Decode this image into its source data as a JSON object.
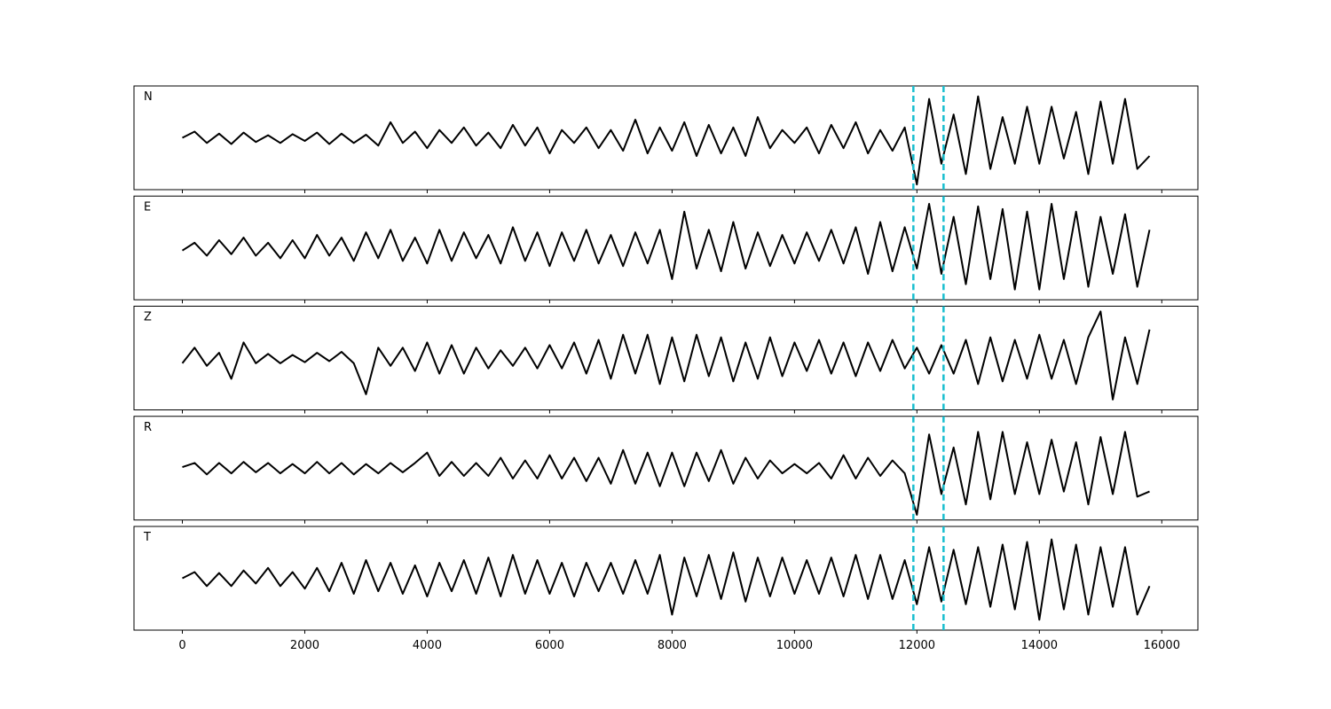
{
  "chart_data": {
    "type": "line",
    "x": [
      0,
      200,
      400,
      600,
      800,
      1000,
      1200,
      1400,
      1600,
      1800,
      2000,
      2200,
      2400,
      2600,
      2800,
      3000,
      3200,
      3400,
      3600,
      3800,
      4000,
      4200,
      4400,
      4600,
      4800,
      5000,
      5200,
      5400,
      5600,
      5800,
      6000,
      6200,
      6400,
      6600,
      6800,
      7000,
      7200,
      7400,
      7600,
      7800,
      8000,
      8200,
      8400,
      8600,
      8800,
      9000,
      9200,
      9400,
      9600,
      9800,
      10000,
      10200,
      10400,
      10600,
      10800,
      11000,
      11200,
      11400,
      11600,
      11800,
      12000,
      12200,
      12400,
      12600,
      12800,
      13000,
      13200,
      13400,
      13600,
      13800,
      14000,
      14200,
      14400,
      14600,
      14800,
      15000,
      15200,
      15400,
      15600,
      15800
    ],
    "xlim": [
      -790,
      16590
    ],
    "xticks": [
      0,
      2000,
      4000,
      6000,
      8000,
      10000,
      12000,
      14000,
      16000
    ],
    "ylim": [
      -1,
      1
    ],
    "vlines": [
      11942,
      12435
    ],
    "vline_color": "#17becf",
    "line_color": "#000000",
    "series": [
      {
        "name": "N",
        "values": [
          0.0,
          0.12,
          -0.1,
          0.08,
          -0.12,
          0.1,
          -0.08,
          0.05,
          -0.1,
          0.07,
          -0.06,
          0.1,
          -0.12,
          0.08,
          -0.1,
          0.06,
          -0.15,
          0.3,
          -0.1,
          0.12,
          -0.2,
          0.15,
          -0.1,
          0.2,
          -0.15,
          0.1,
          -0.2,
          0.25,
          -0.15,
          0.2,
          -0.3,
          0.15,
          -0.1,
          0.2,
          -0.2,
          0.15,
          -0.25,
          0.35,
          -0.3,
          0.2,
          -0.25,
          0.3,
          -0.35,
          0.25,
          -0.3,
          0.2,
          -0.35,
          0.4,
          -0.2,
          0.15,
          -0.1,
          0.2,
          -0.3,
          0.25,
          -0.2,
          0.3,
          -0.3,
          0.15,
          -0.25,
          0.2,
          -0.9,
          0.75,
          -0.5,
          0.45,
          -0.7,
          0.8,
          -0.6,
          0.4,
          -0.5,
          0.6,
          -0.5,
          0.6,
          -0.4,
          0.5,
          -0.7,
          0.7,
          -0.5,
          0.75,
          -0.6,
          -0.35
        ]
      },
      {
        "name": "E",
        "values": [
          -0.05,
          0.1,
          -0.15,
          0.15,
          -0.12,
          0.2,
          -0.15,
          0.1,
          -0.2,
          0.15,
          -0.2,
          0.25,
          -0.15,
          0.2,
          -0.25,
          0.3,
          -0.2,
          0.35,
          -0.25,
          0.2,
          -0.3,
          0.35,
          -0.25,
          0.3,
          -0.2,
          0.25,
          -0.3,
          0.4,
          -0.25,
          0.3,
          -0.35,
          0.3,
          -0.25,
          0.35,
          -0.3,
          0.25,
          -0.35,
          0.3,
          -0.3,
          0.35,
          -0.6,
          0.7,
          -0.4,
          0.35,
          -0.45,
          0.5,
          -0.4,
          0.3,
          -0.35,
          0.25,
          -0.3,
          0.3,
          -0.25,
          0.35,
          -0.3,
          0.4,
          -0.5,
          0.5,
          -0.45,
          0.4,
          -0.4,
          0.85,
          -0.5,
          0.6,
          -0.7,
          0.8,
          -0.6,
          0.75,
          -0.8,
          0.7,
          -0.8,
          0.85,
          -0.6,
          0.7,
          -0.75,
          0.6,
          -0.5,
          0.65,
          -0.75,
          0.35
        ]
      },
      {
        "name": "Z",
        "values": [
          -0.1,
          0.2,
          -0.15,
          0.1,
          -0.4,
          0.3,
          -0.1,
          0.08,
          -0.1,
          0.06,
          -0.08,
          0.1,
          -0.06,
          0.12,
          -0.1,
          -0.7,
          0.2,
          -0.15,
          0.2,
          -0.25,
          0.3,
          -0.3,
          0.25,
          -0.3,
          0.2,
          -0.2,
          0.15,
          -0.15,
          0.2,
          -0.2,
          0.25,
          -0.2,
          0.3,
          -0.3,
          0.35,
          -0.4,
          0.45,
          -0.3,
          0.45,
          -0.5,
          0.4,
          -0.45,
          0.45,
          -0.35,
          0.4,
          -0.45,
          0.3,
          -0.4,
          0.4,
          -0.35,
          0.3,
          -0.25,
          0.35,
          -0.3,
          0.3,
          -0.35,
          0.3,
          -0.25,
          0.35,
          -0.2,
          0.2,
          -0.3,
          0.25,
          -0.3,
          0.35,
          -0.5,
          0.4,
          -0.45,
          0.35,
          -0.4,
          0.45,
          -0.4,
          0.35,
          -0.5,
          0.4,
          0.9,
          -0.8,
          0.4,
          -0.5,
          0.55
        ]
      },
      {
        "name": "R",
        "values": [
          0.02,
          0.1,
          -0.12,
          0.1,
          -0.1,
          0.12,
          -0.08,
          0.1,
          -0.1,
          0.08,
          -0.1,
          0.12,
          -0.1,
          0.1,
          -0.12,
          0.08,
          -0.1,
          0.1,
          -0.08,
          0.1,
          0.3,
          -0.15,
          0.12,
          -0.15,
          0.1,
          -0.15,
          0.2,
          -0.2,
          0.15,
          -0.2,
          0.25,
          -0.2,
          0.2,
          -0.25,
          0.2,
          -0.3,
          0.35,
          -0.3,
          0.3,
          -0.35,
          0.3,
          -0.35,
          0.3,
          -0.25,
          0.35,
          -0.3,
          0.2,
          -0.2,
          0.15,
          -0.1,
          0.08,
          -0.1,
          0.1,
          -0.2,
          0.25,
          -0.2,
          0.2,
          -0.15,
          0.15,
          -0.1,
          -0.9,
          0.65,
          -0.5,
          0.4,
          -0.7,
          0.7,
          -0.6,
          0.7,
          -0.5,
          0.5,
          -0.5,
          0.55,
          -0.45,
          0.5,
          -0.7,
          0.6,
          -0.5,
          0.7,
          -0.55,
          -0.45
        ]
      },
      {
        "name": "T",
        "values": [
          0.0,
          0.12,
          -0.15,
          0.1,
          -0.15,
          0.15,
          -0.1,
          0.2,
          -0.15,
          0.12,
          -0.2,
          0.2,
          -0.25,
          0.3,
          -0.3,
          0.35,
          -0.25,
          0.3,
          -0.3,
          0.25,
          -0.35,
          0.3,
          -0.25,
          0.35,
          -0.3,
          0.4,
          -0.35,
          0.45,
          -0.3,
          0.35,
          -0.3,
          0.3,
          -0.35,
          0.3,
          -0.25,
          0.3,
          -0.3,
          0.35,
          -0.3,
          0.45,
          -0.7,
          0.4,
          -0.35,
          0.45,
          -0.4,
          0.5,
          -0.45,
          0.4,
          -0.35,
          0.4,
          -0.3,
          0.35,
          -0.3,
          0.4,
          -0.35,
          0.45,
          -0.4,
          0.45,
          -0.4,
          0.35,
          -0.5,
          0.6,
          -0.45,
          0.55,
          -0.5,
          0.6,
          -0.55,
          0.65,
          -0.6,
          0.7,
          -0.8,
          0.75,
          -0.6,
          0.65,
          -0.7,
          0.6,
          -0.55,
          0.6,
          -0.7,
          -0.15
        ]
      }
    ]
  }
}
